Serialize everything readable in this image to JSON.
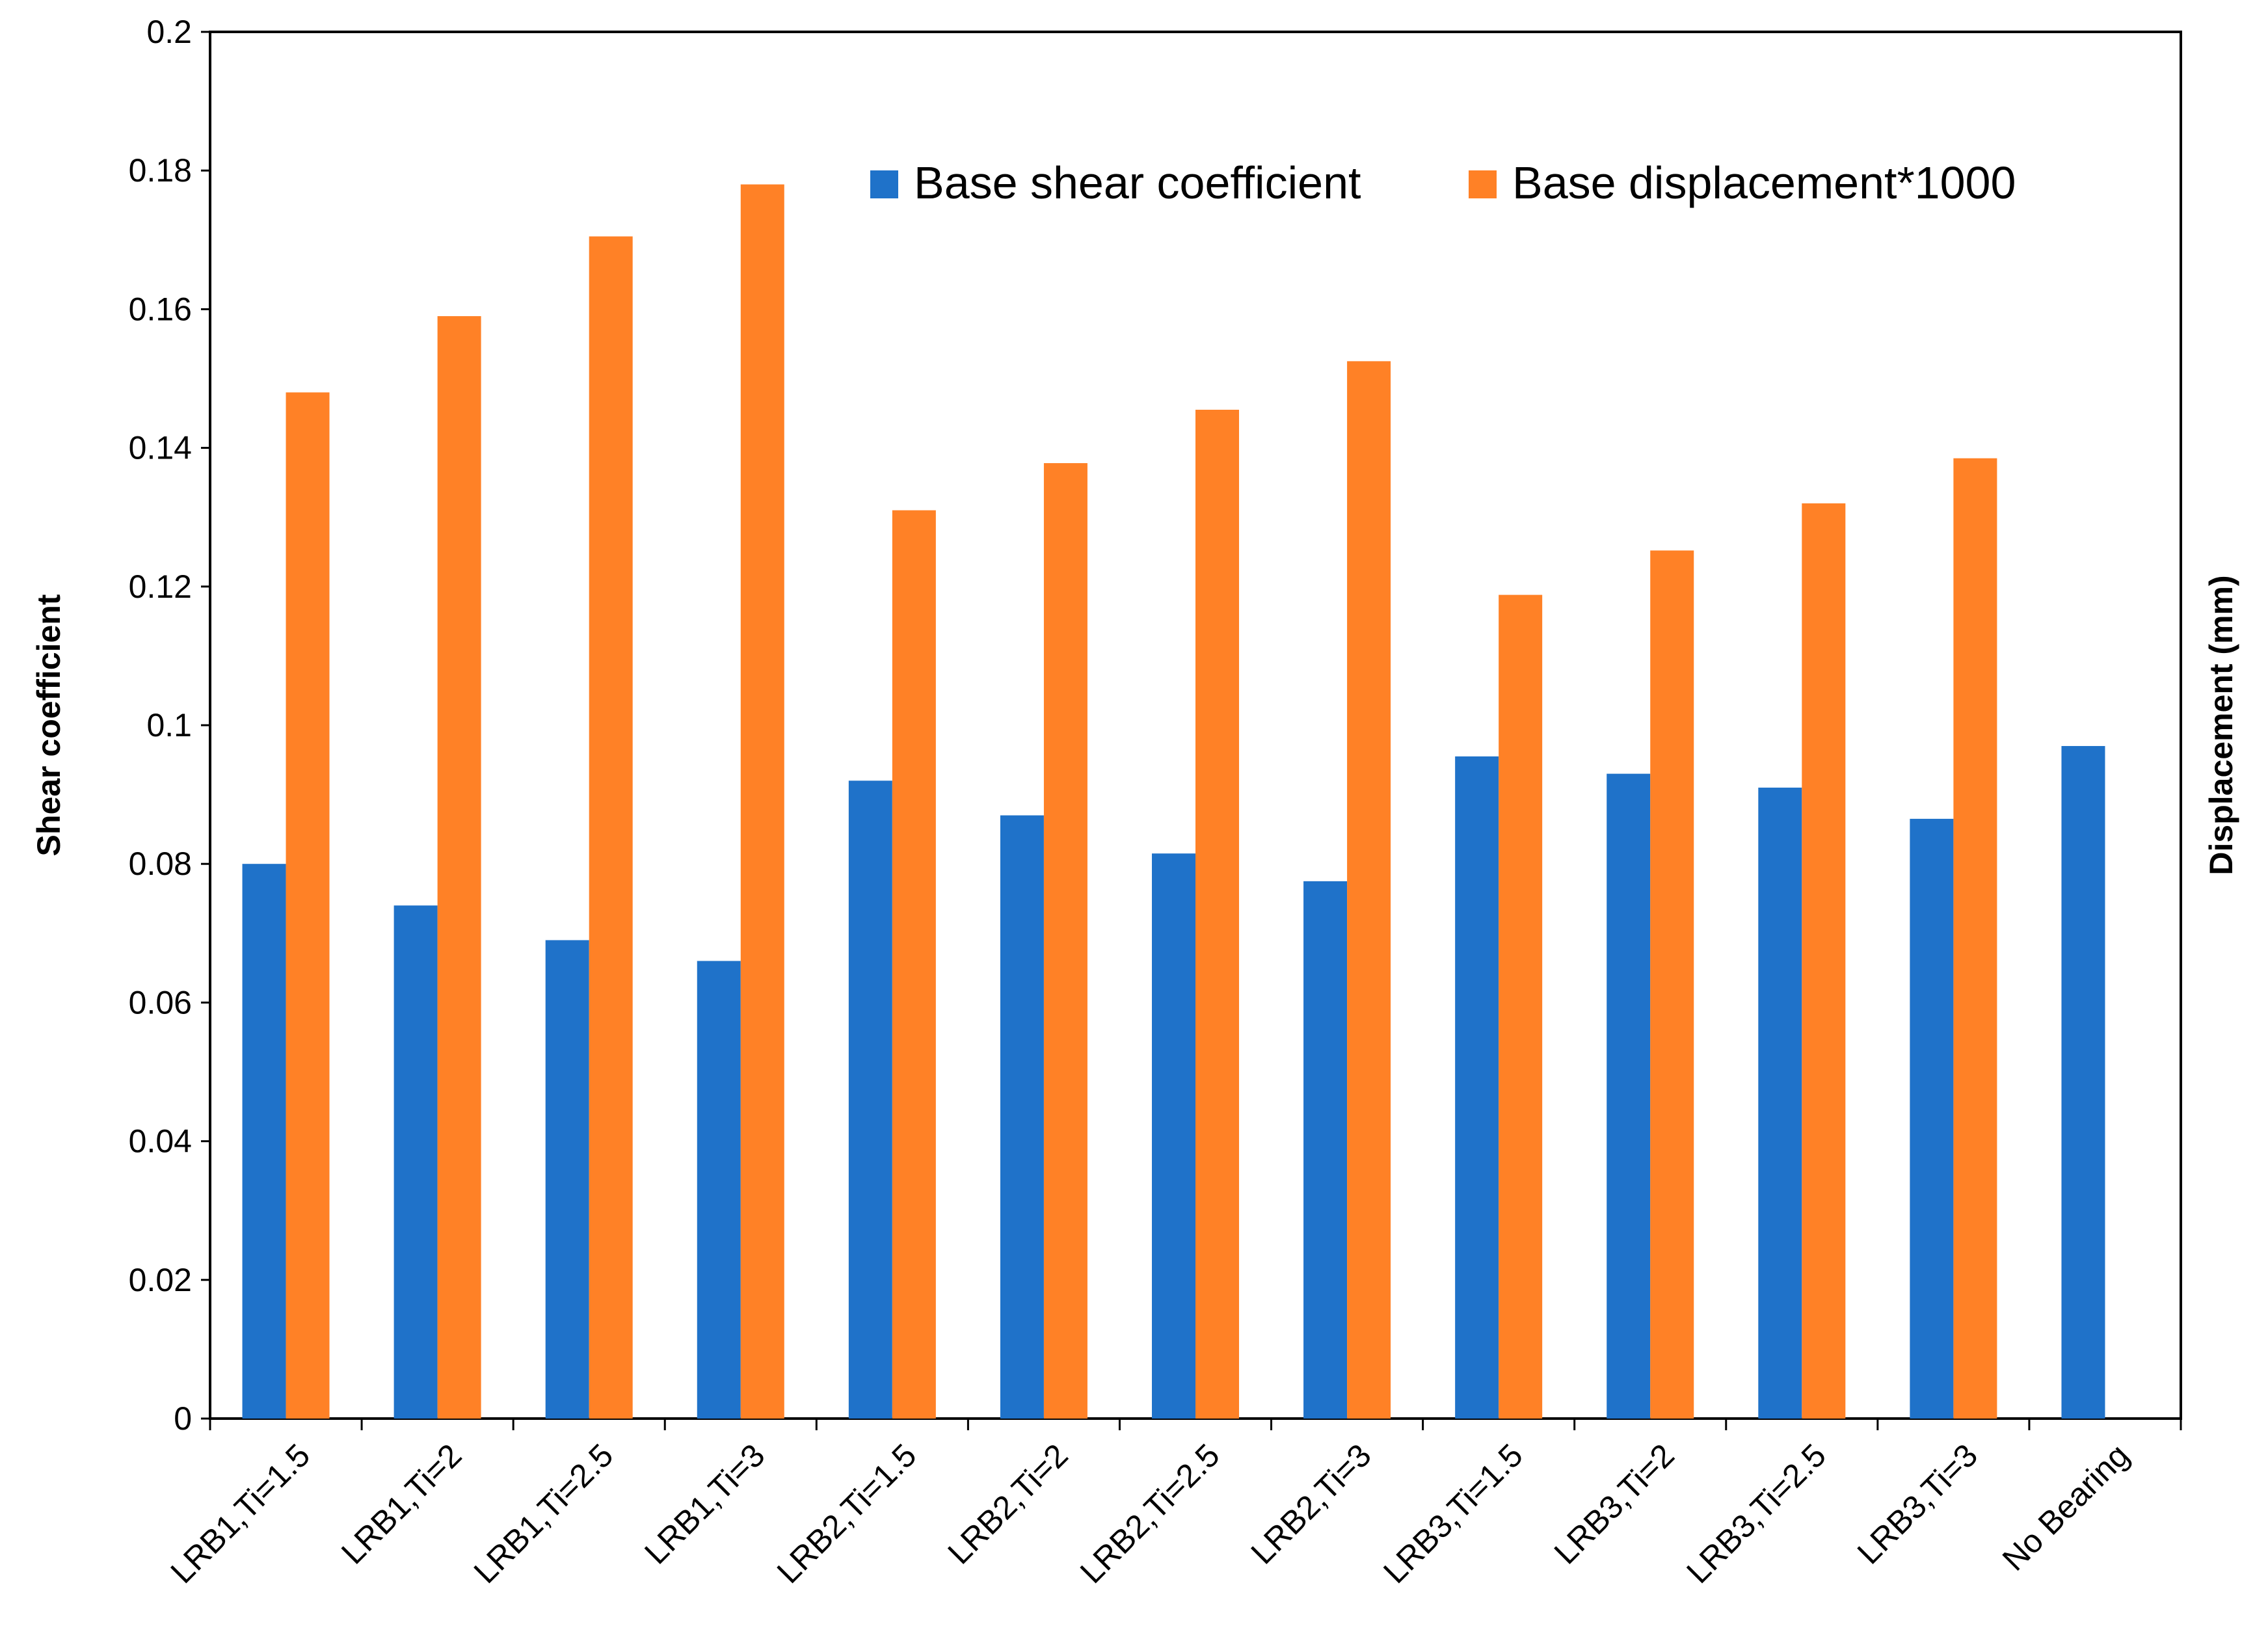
{
  "chart_data": {
    "type": "bar",
    "title": "",
    "xlabel": "",
    "ylabel": "Shear coefficient",
    "ylabel_right": "Displacement (mm)",
    "ylim": [
      0,
      0.2
    ],
    "yticks": [
      "0",
      "0.02",
      "0.04",
      "0.06",
      "0.08",
      "0.1",
      "0.12",
      "0.14",
      "0.16",
      "0.18",
      "0.2"
    ],
    "categories": [
      "LRB1,Ti=1.5",
      "LRB1,Ti=2",
      "LRB1,Ti=2.5",
      "LRB1,Ti=3",
      "LRB2,Ti=1.5",
      "LRB2,Ti=2",
      "LRB2,Ti=2.5",
      "LRB2,Ti=3",
      "LRB3,Ti=1.5",
      "LRB3,Ti=2",
      "LRB3,Ti=2.5",
      "LRB3,Ti=3",
      "No Bearing"
    ],
    "series": [
      {
        "name": "Base shear coefficient",
        "color": "#1f72c9",
        "values": [
          0.08,
          0.074,
          0.069,
          0.066,
          0.092,
          0.087,
          0.0815,
          0.0775,
          0.0955,
          0.093,
          0.091,
          0.0865,
          0.097
        ]
      },
      {
        "name": "Base displacement*1000",
        "color": "#ff8126",
        "values": [
          0.148,
          0.159,
          0.1705,
          0.178,
          0.131,
          0.1378,
          0.1455,
          0.1525,
          0.1188,
          0.1252,
          0.132,
          0.1385,
          null
        ]
      }
    ],
    "legend_position": "top-right",
    "grid": false
  }
}
